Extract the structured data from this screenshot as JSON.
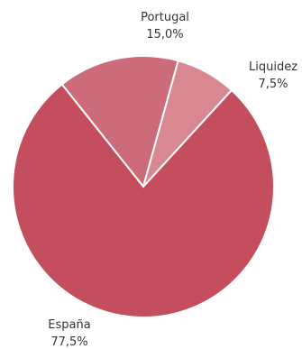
{
  "chart_data": {
    "type": "pie",
    "title": "",
    "slices": [
      {
        "label": "España",
        "value": 77.5,
        "value_label": "77,5%",
        "color": "#c44d5e"
      },
      {
        "label": "Portugal",
        "value": 15.0,
        "value_label": "15,0%",
        "color": "#cc6b79"
      },
      {
        "label": "Liquidez",
        "value": 7.5,
        "value_label": "7,5%",
        "color": "#d98790"
      }
    ],
    "slice_border_color": "#ffffff",
    "legend": "none"
  }
}
